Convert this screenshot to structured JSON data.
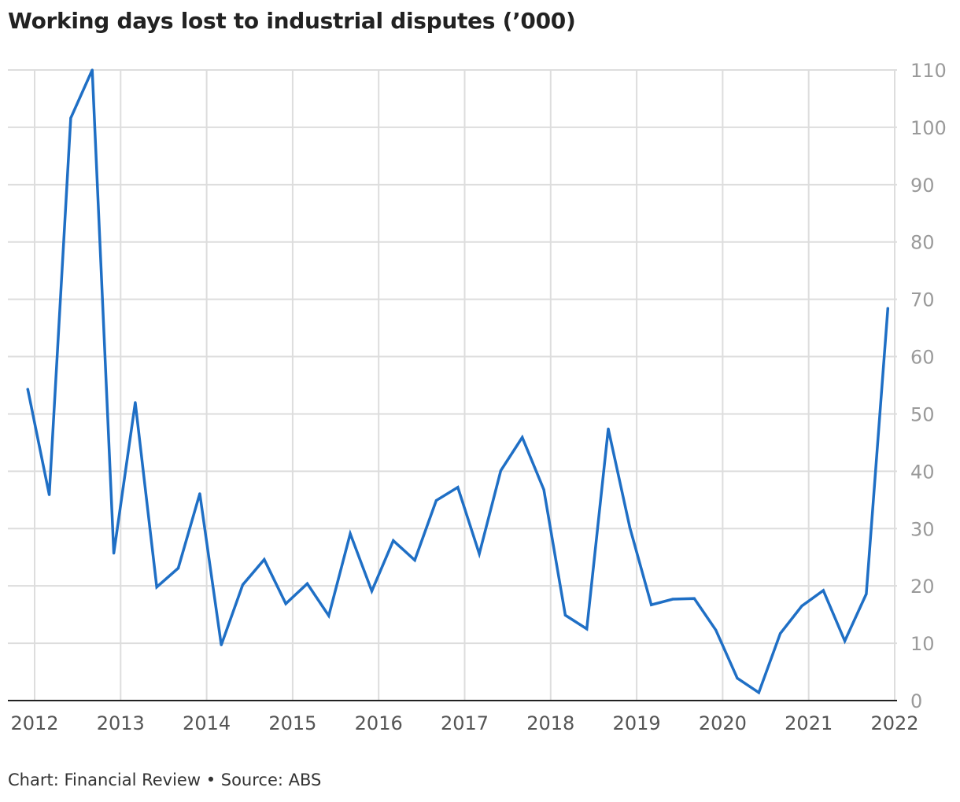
{
  "title": "Working days lost to industrial disputes (’000)",
  "source": "Chart: Financial Review • Source: ABS",
  "colors": {
    "line": "#1f6fc5",
    "grid": "#dddddd",
    "axis": "#222222"
  },
  "chart_data": {
    "type": "line",
    "title": "Working days lost to industrial disputes (’000)",
    "x_ticks": [
      2012,
      2013,
      2014,
      2015,
      2016,
      2017,
      2018,
      2019,
      2020,
      2021,
      2022
    ],
    "y_ticks": [
      0,
      10,
      20,
      30,
      40,
      50,
      60,
      70,
      80,
      90,
      100,
      110
    ],
    "xlim": [
      2012,
      2022
    ],
    "ylim": [
      0,
      110
    ],
    "grid": true,
    "y_axis_position": "right",
    "series": [
      {
        "x": [
          2011.92,
          2012.17,
          2012.42,
          2012.67,
          2012.92,
          2013.17,
          2013.42,
          2013.67,
          2013.92,
          2014.17,
          2014.42,
          2014.67,
          2014.92,
          2015.17,
          2015.42,
          2015.67,
          2015.92,
          2016.17,
          2016.42,
          2016.67,
          2016.92,
          2017.17,
          2017.42,
          2017.67,
          2017.92,
          2018.17,
          2018.42,
          2018.67,
          2018.92,
          2019.17,
          2019.42,
          2019.67,
          2019.92,
          2020.17,
          2020.42,
          2020.67,
          2020.92,
          2021.17,
          2021.42,
          2021.67,
          2021.92
        ],
        "values": [
          54.3,
          35.9,
          101.6,
          110,
          25.7,
          52,
          19.8,
          23.1,
          36.1,
          9.7,
          20.2,
          24.6,
          16.9,
          20.4,
          14.8,
          29.1,
          19.1,
          27.9,
          24.5,
          34.9,
          37.2,
          25.6,
          40.1,
          45.9,
          36.8,
          14.9,
          12.5,
          47.4,
          30.2,
          16.7,
          17.7,
          17.8,
          12.3,
          3.9,
          1.4,
          11.7,
          16.5,
          19.2,
          10.4,
          18.6,
          68.4
        ]
      }
    ]
  }
}
